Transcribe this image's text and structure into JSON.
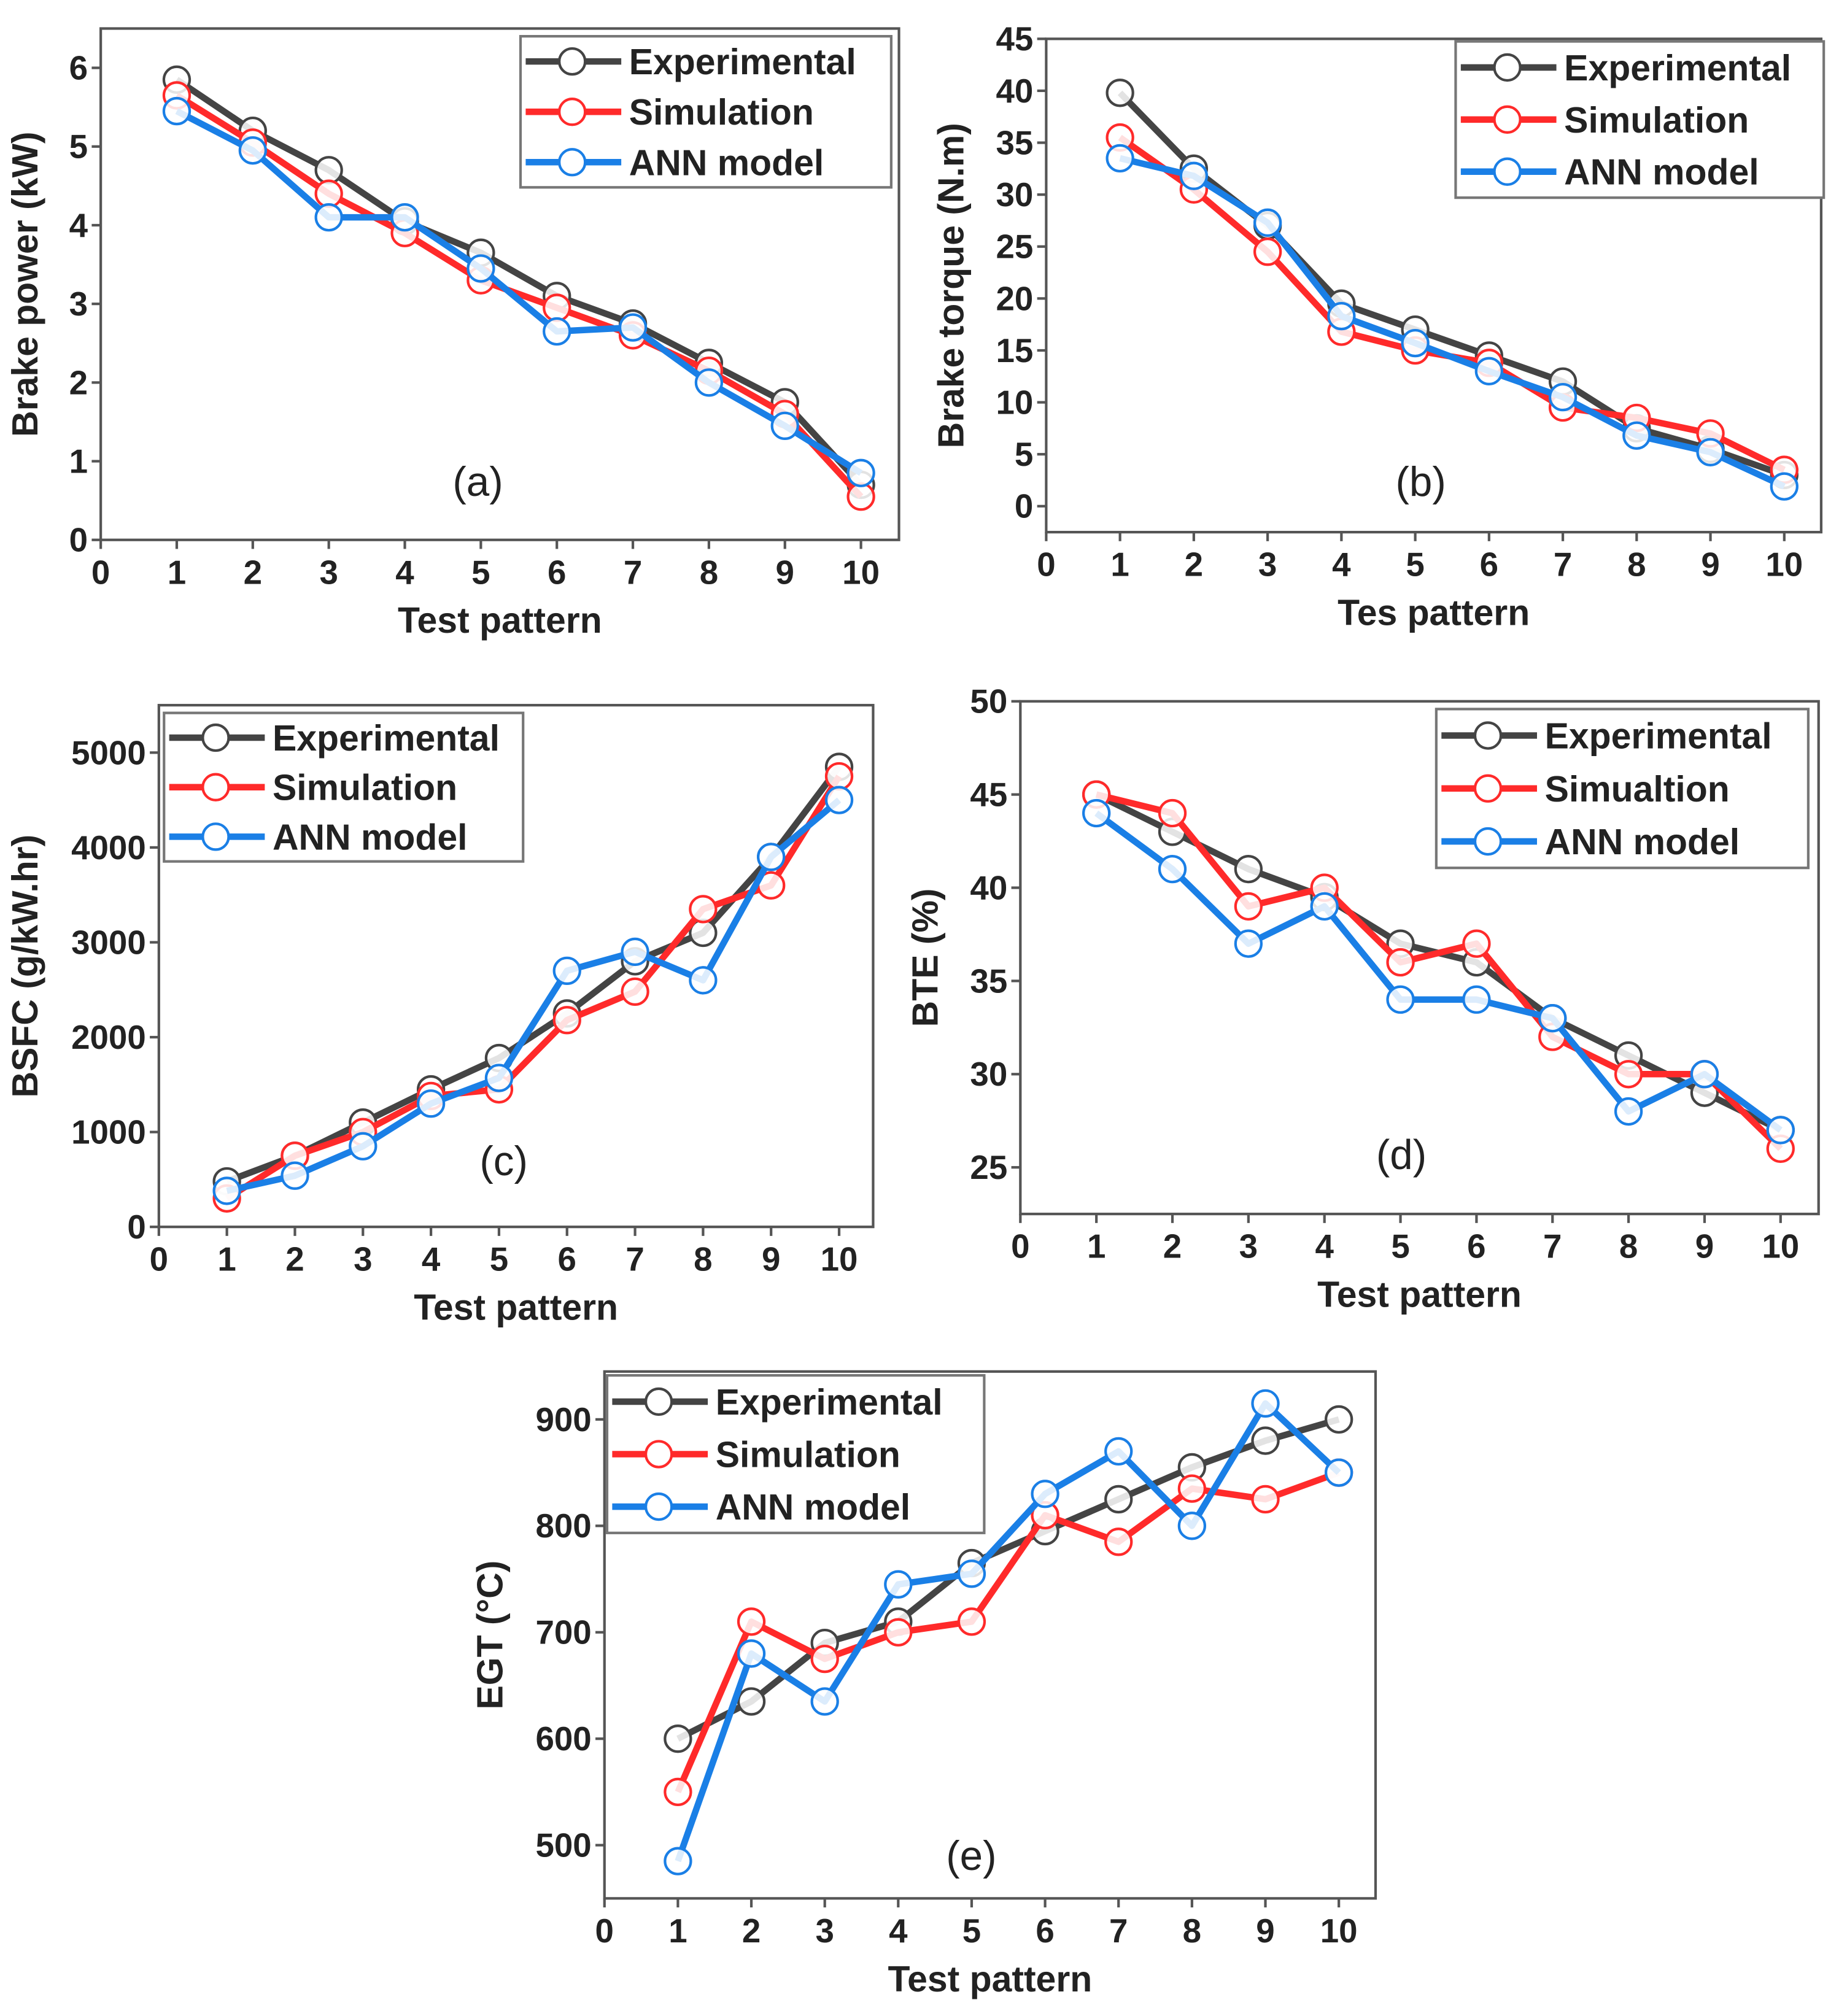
{
  "colors": {
    "Experimental": "#444444",
    "Simulation": "#ff2a2a",
    "ANN model": "#1a7fe6"
  },
  "chart_data": [
    {
      "type": "line",
      "panel_label": "(a)",
      "xlabel": "Test pattern",
      "ylabel": "Brake power (kW)",
      "x": [
        1,
        2,
        3,
        4,
        5,
        6,
        7,
        8,
        9,
        10
      ],
      "xlim": [
        0,
        10.5
      ],
      "ylim": [
        0,
        6.5
      ],
      "xticks": [
        0,
        1,
        2,
        3,
        4,
        5,
        6,
        7,
        8,
        9,
        10
      ],
      "yticks": [
        0,
        1,
        2,
        3,
        4,
        5,
        6
      ],
      "legend_position": "top-right",
      "series": [
        {
          "name": "Experimental",
          "values": [
            5.85,
            5.2,
            4.7,
            4.05,
            3.65,
            3.1,
            2.75,
            2.25,
            1.75,
            0.7
          ]
        },
        {
          "name": "Simulation",
          "values": [
            5.65,
            5.05,
            4.4,
            3.9,
            3.3,
            2.95,
            2.6,
            2.15,
            1.6,
            0.55
          ]
        },
        {
          "name": "ANN model",
          "values": [
            5.45,
            4.95,
            4.1,
            4.1,
            3.45,
            2.65,
            2.7,
            2.0,
            1.45,
            0.85
          ]
        }
      ]
    },
    {
      "type": "line",
      "panel_label": "(b)",
      "xlabel": "Tes pattern",
      "ylabel": "Brake torque (N.m)",
      "x": [
        1,
        2,
        3,
        4,
        5,
        6,
        7,
        8,
        9,
        10
      ],
      "xlim": [
        0,
        10.5
      ],
      "ylim": [
        -2.5,
        45
      ],
      "xticks": [
        0,
        1,
        2,
        3,
        4,
        5,
        6,
        7,
        8,
        9,
        10
      ],
      "yticks": [
        0,
        5,
        10,
        15,
        20,
        25,
        30,
        35,
        40,
        45
      ],
      "legend_position": "top-right",
      "series": [
        {
          "name": "Experimental",
          "values": [
            39.8,
            32.5,
            27,
            19.5,
            17,
            14.5,
            12,
            7.5,
            5.5,
            3
          ]
        },
        {
          "name": "Simulation",
          "values": [
            35.5,
            30.5,
            24.5,
            16.8,
            15,
            13.8,
            9.5,
            8.5,
            7,
            3.5
          ]
        },
        {
          "name": "ANN model",
          "values": [
            33.5,
            31.8,
            27.3,
            18.3,
            15.7,
            13,
            10.5,
            6.8,
            5.2,
            1.9
          ]
        }
      ]
    },
    {
      "type": "line",
      "panel_label": "(c)",
      "xlabel": "Test pattern",
      "ylabel": "BSFC (g/kW.hr)",
      "x": [
        1,
        2,
        3,
        4,
        5,
        6,
        7,
        8,
        9,
        10
      ],
      "xlim": [
        0,
        10.5
      ],
      "ylim": [
        0,
        5500
      ],
      "xticks": [
        0,
        1,
        2,
        3,
        4,
        5,
        6,
        7,
        8,
        9,
        10
      ],
      "yticks": [
        0,
        1000,
        2000,
        3000,
        4000,
        5000
      ],
      "legend_position": "top-left",
      "series": [
        {
          "name": "Experimental",
          "values": [
            480,
            750,
            1100,
            1450,
            1780,
            2250,
            2800,
            3100,
            3900,
            4850
          ]
        },
        {
          "name": "Simulation",
          "values": [
            300,
            750,
            1000,
            1380,
            1450,
            2180,
            2480,
            3350,
            3600,
            4750
          ]
        },
        {
          "name": "ANN model",
          "values": [
            380,
            540,
            850,
            1300,
            1570,
            2700,
            2900,
            2600,
            3900,
            4500
          ]
        }
      ]
    },
    {
      "type": "line",
      "panel_label": "(d)",
      "xlabel": "Test pattern",
      "ylabel": "BTE (%)",
      "x": [
        1,
        2,
        3,
        4,
        5,
        6,
        7,
        8,
        9,
        10
      ],
      "xlim": [
        0,
        10.5
      ],
      "ylim": [
        22.5,
        50
      ],
      "xticks": [
        0,
        1,
        2,
        3,
        4,
        5,
        6,
        7,
        8,
        9,
        10
      ],
      "yticks": [
        25,
        30,
        35,
        40,
        45,
        50
      ],
      "legend_position": "top-right",
      "legend_labels": [
        "Experimental",
        "Simualtion",
        "ANN model"
      ],
      "series": [
        {
          "name": "Experimental",
          "values": [
            45,
            43,
            41,
            39.5,
            37,
            36,
            33,
            31,
            29,
            27
          ]
        },
        {
          "name": "Simulation",
          "values": [
            45,
            44,
            39,
            40,
            36,
            37,
            32,
            30,
            30,
            26
          ]
        },
        {
          "name": "ANN model",
          "values": [
            44,
            41,
            37,
            39,
            34,
            34,
            33,
            28,
            30,
            27
          ]
        }
      ]
    },
    {
      "type": "line",
      "panel_label": "(e)",
      "xlabel": "Test pattern",
      "ylabel": "EGT (°C)",
      "x": [
        1,
        2,
        3,
        4,
        5,
        6,
        7,
        8,
        9,
        10
      ],
      "xlim": [
        0,
        10.5
      ],
      "ylim": [
        450,
        945
      ],
      "xticks": [
        0,
        1,
        2,
        3,
        4,
        5,
        6,
        7,
        8,
        9,
        10
      ],
      "yticks": [
        500,
        600,
        700,
        800,
        900
      ],
      "legend_position": "top-left",
      "series": [
        {
          "name": "Experimental",
          "values": [
            600,
            635,
            690,
            710,
            765,
            795,
            825,
            855,
            880,
            900
          ]
        },
        {
          "name": "Simulation",
          "values": [
            550,
            710,
            675,
            700,
            710,
            810,
            785,
            835,
            825,
            850
          ]
        },
        {
          "name": "ANN model",
          "values": [
            485,
            680,
            635,
            745,
            755,
            830,
            870,
            800,
            915,
            850
          ]
        }
      ]
    }
  ]
}
